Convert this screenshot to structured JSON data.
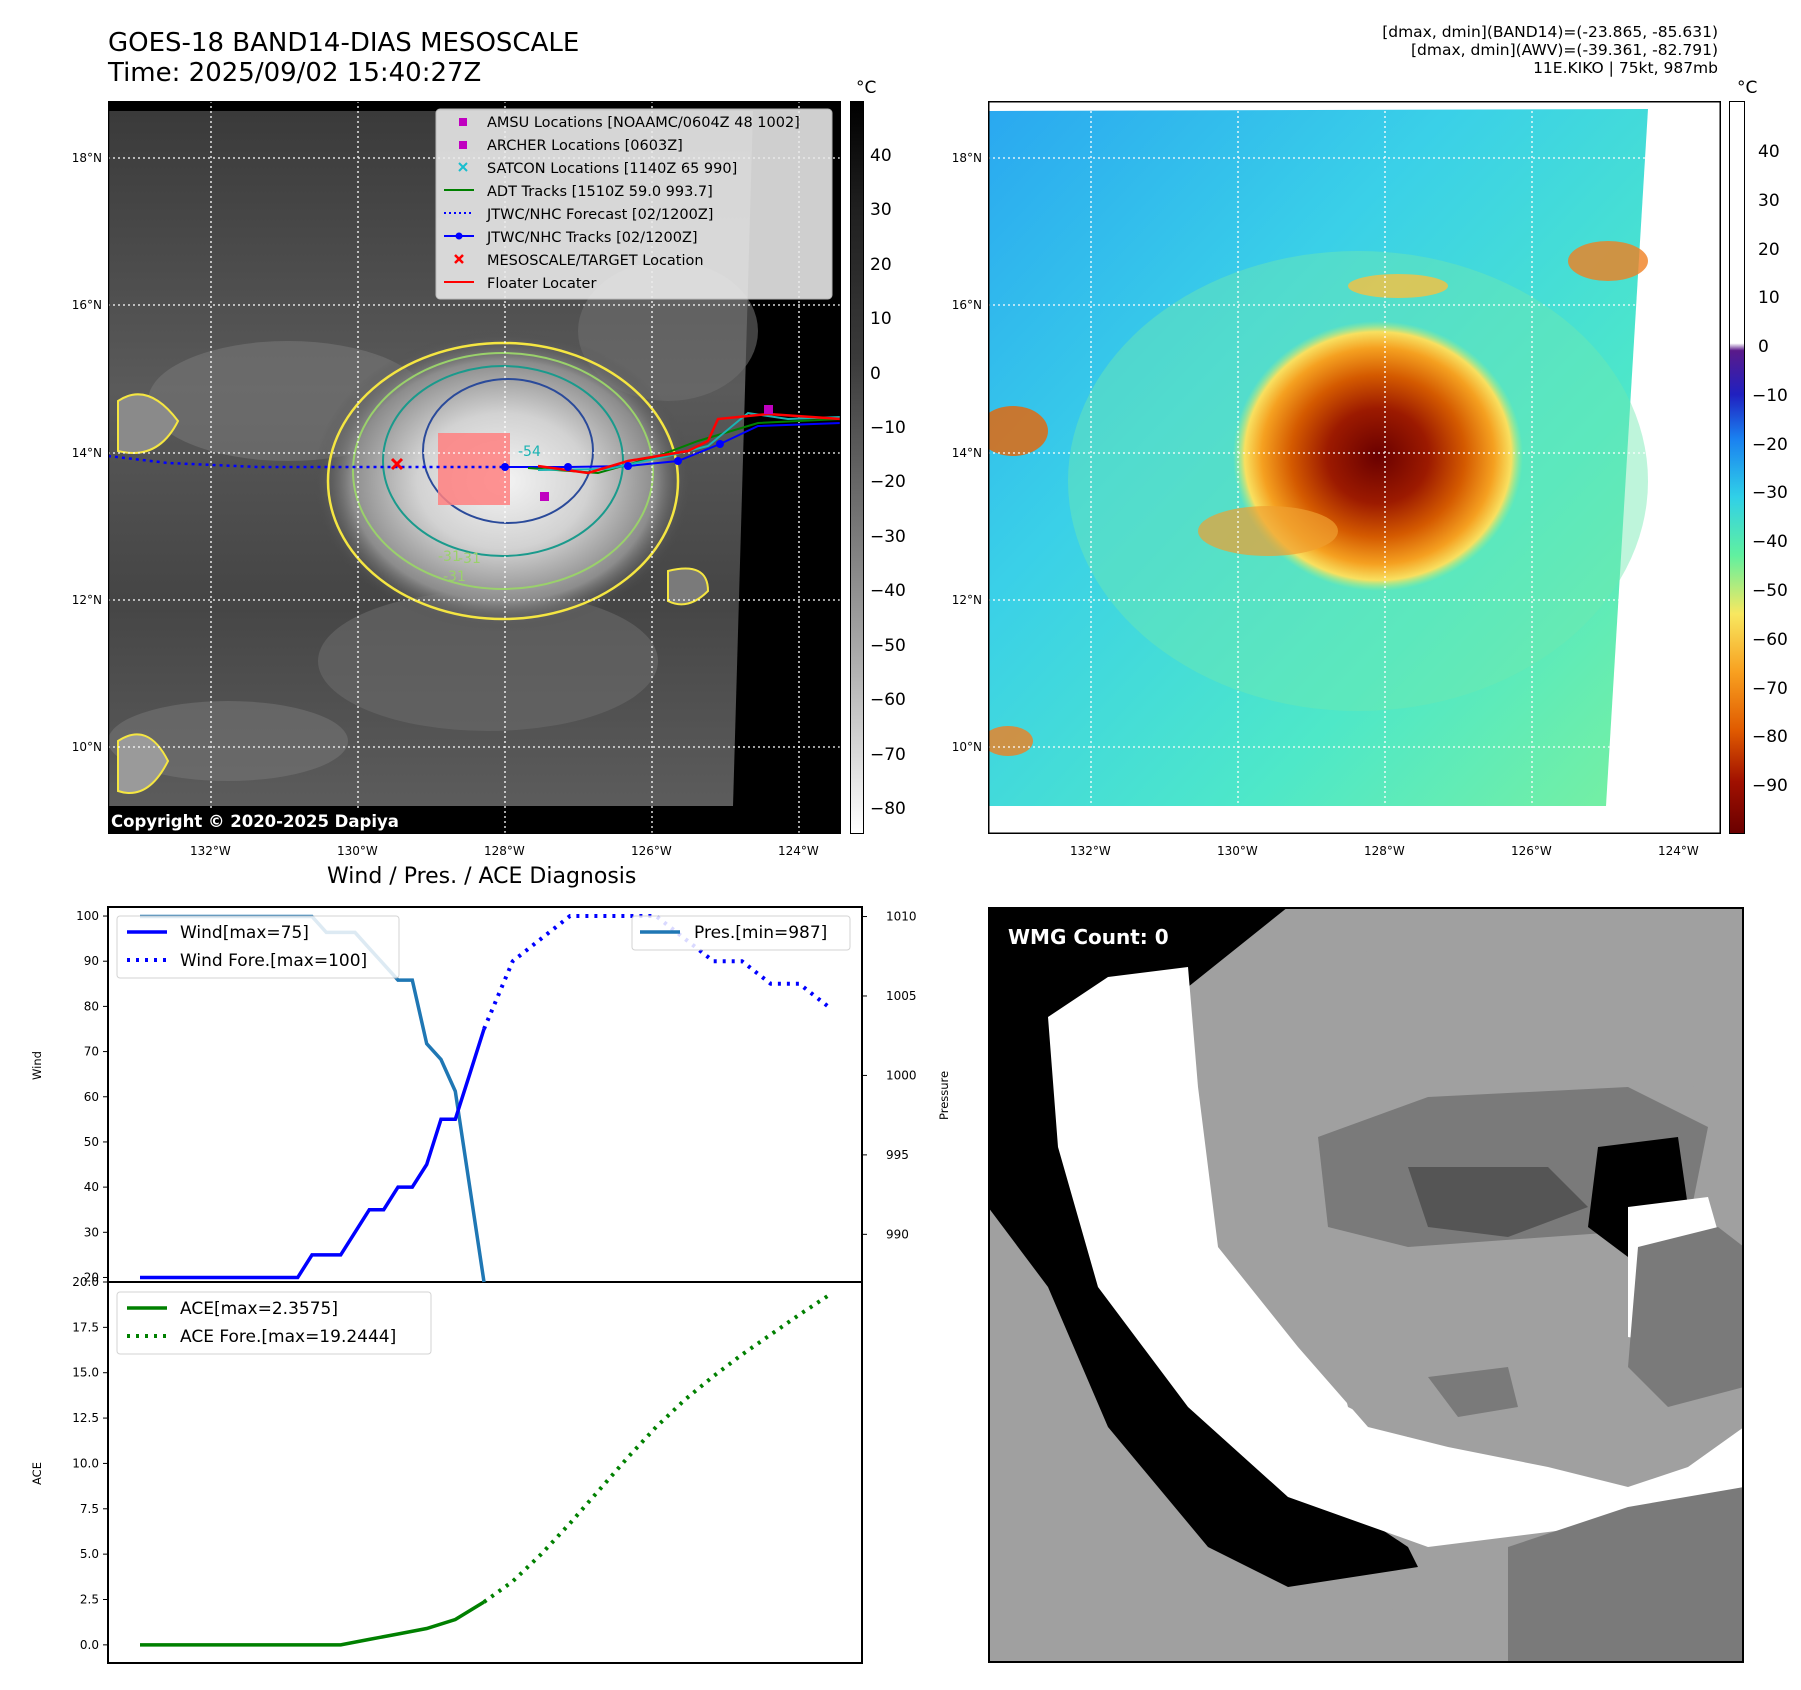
{
  "header": {
    "title_line1": "GOES-18 BAND14-DIAS MESOSCALE",
    "title_line2": "Time: 2025/09/02 15:40:27Z",
    "info_line1": "[dmax, dmin](BAND14)=(-23.865, -85.631)",
    "info_line2": "[dmax, dmin](AWV)=(-39.361, -82.791)",
    "info_line3": "11E.KIKO | 75kt, 987mb"
  },
  "map_axes": {
    "lat_ticks": [
      "18°N",
      "16°N",
      "14°N",
      "12°N",
      "10°N"
    ],
    "lon_ticks": [
      "132°W",
      "130°W",
      "128°W",
      "126°W",
      "124°W"
    ]
  },
  "ir_panel": {
    "legend": [
      "AMSU Locations [NOAAMC/0604Z 48 1002]",
      "ARCHER Locations [0603Z]",
      "SATCON Locations [1140Z 65 990]",
      "ADT Tracks [1510Z 59.0 993.7]",
      "JTWC/NHC Forecast [02/1200Z]",
      "JTWC/NHC Tracks [02/1200Z]",
      "MESOSCALE/TARGET Location",
      "Floater Locater"
    ],
    "contour_labels": [
      "-54",
      "-31",
      "-31",
      "-31"
    ],
    "copyright": "Copyright © 2020-2025 Dapiya",
    "colorbar_unit": "°C",
    "colorbar_ticks": [
      "40",
      "30",
      "20",
      "10",
      "0",
      "−10",
      "−20",
      "−30",
      "−40",
      "−50",
      "−60",
      "−70",
      "−80"
    ]
  },
  "awv_panel": {
    "colorbar_unit": "°C",
    "colorbar_ticks": [
      "40",
      "30",
      "20",
      "10",
      "0",
      "−10",
      "−20",
      "−30",
      "−40",
      "−50",
      "−60",
      "−70",
      "−80",
      "−90"
    ]
  },
  "wmg_panel": {
    "label": "WMG Count: 0"
  },
  "colors": {
    "wind": "#0000ff",
    "pressure": "#1f77b4",
    "ace": "#008000",
    "amsu": "#c000c0",
    "satcon": "#17becf",
    "target": "#ff0000"
  },
  "chart_data": [
    {
      "type": "line",
      "title": "Wind / Pres. / ACE Diagnosis",
      "ylabel": "Wind",
      "y2label": "Pressure",
      "ylim": [
        19,
        102
      ],
      "y2lim": [
        987,
        1010.6
      ],
      "yticks": [
        20,
        30,
        40,
        50,
        60,
        70,
        80,
        90,
        100
      ],
      "y2ticks": [
        990,
        995,
        1000,
        1005,
        1010
      ],
      "series": [
        {
          "name": "Wind[max=75]",
          "style": "solid",
          "x": [
            0,
            1,
            2,
            3,
            4,
            5,
            6,
            7,
            8,
            9,
            10,
            11,
            12,
            13,
            14,
            15,
            16,
            17,
            18,
            19,
            20,
            21,
            22,
            23,
            24
          ],
          "values": [
            20,
            20,
            20,
            20,
            20,
            20,
            20,
            20,
            20,
            20,
            20,
            20,
            25,
            25,
            25,
            30,
            35,
            35,
            40,
            40,
            45,
            55,
            55,
            65,
            75
          ]
        },
        {
          "name": "Wind Fore.[max=100]",
          "style": "dotted",
          "x": [
            24,
            26,
            28,
            30,
            32,
            34,
            36,
            38,
            40,
            42,
            44,
            46,
            48
          ],
          "values": [
            75,
            90,
            95,
            100,
            100,
            100,
            100,
            95,
            90,
            90,
            85,
            85,
            80
          ]
        },
        {
          "name": "Pres.[min=987]",
          "style": "solid",
          "axis": "right",
          "x": [
            0,
            1,
            2,
            3,
            4,
            5,
            6,
            7,
            8,
            9,
            10,
            11,
            12,
            13,
            14,
            15,
            16,
            17,
            18,
            19,
            20,
            21,
            22,
            23,
            24
          ],
          "values": [
            1010,
            1010,
            1010,
            1010,
            1010,
            1010,
            1010,
            1010,
            1010,
            1010,
            1010,
            1010,
            1010,
            1009,
            1009,
            1009,
            1008,
            1007,
            1006,
            1006,
            1002,
            1001,
            999,
            993,
            987
          ]
        }
      ]
    },
    {
      "type": "line",
      "ylabel": "ACE",
      "ylim": [
        -1.0,
        20.0
      ],
      "yticks": [
        "0.0",
        "2.5",
        "5.0",
        "7.5",
        "10.0",
        "12.5",
        "15.0",
        "17.5",
        "20.0"
      ],
      "series": [
        {
          "name": "ACE[max=2.3575]",
          "style": "solid",
          "x": [
            0,
            2,
            4,
            6,
            8,
            10,
            12,
            14,
            16,
            18,
            20,
            22,
            24
          ],
          "values": [
            0,
            0,
            0,
            0,
            0,
            0,
            0,
            0,
            0.3,
            0.6,
            0.9,
            1.4,
            2.36
          ]
        },
        {
          "name": "ACE Fore.[max=19.2444]",
          "style": "dotted",
          "x": [
            24,
            26,
            28,
            30,
            32,
            34,
            36,
            38,
            40,
            42,
            44,
            46,
            48
          ],
          "values": [
            2.36,
            3.5,
            5.0,
            6.7,
            8.5,
            10.3,
            12.0,
            13.5,
            14.8,
            16.0,
            17.1,
            18.2,
            19.24
          ]
        }
      ]
    }
  ]
}
